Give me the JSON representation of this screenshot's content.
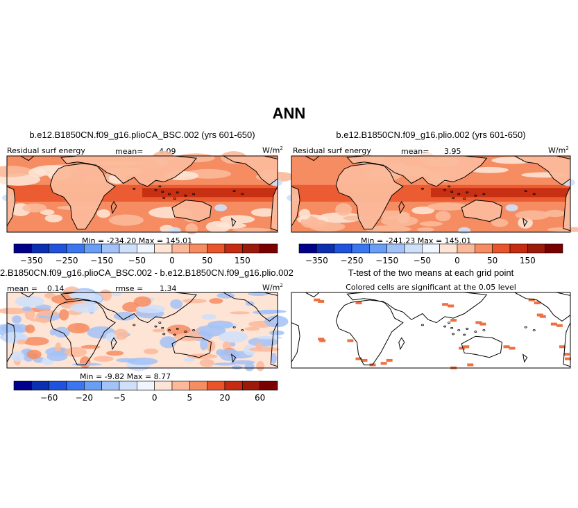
{
  "figure": {
    "title": "ANN",
    "colors": {
      "land_outline": "#000000",
      "significance_cell": "#ee7040",
      "background": "#ffffff"
    }
  },
  "chart_data": [
    {
      "type": "heatmap",
      "panel": "top-left",
      "title": "b.e12.B1850CN.f09_g16.plioCA_BSC.002 (yrs 601-650)",
      "variable": "Residual surf energy",
      "units_base": "W/m",
      "units_exp": "2",
      "mean_label": "mean=",
      "mean_value": "4.09",
      "min_label": "Min =",
      "min_value": "-234.20",
      "max_label": "Max =",
      "max_value": "145.01",
      "colorbar": {
        "levels": [
          -350,
          -300,
          -250,
          -200,
          -150,
          -100,
          -50,
          -25,
          0,
          25,
          50,
          100,
          150,
          200
        ],
        "tick_labels": [
          "-350",
          "-250",
          "-150",
          "-50",
          "0",
          "50",
          "150"
        ],
        "colors": [
          "#00008b",
          "#0a2fb0",
          "#1f52dd",
          "#3a76f0",
          "#6a9df4",
          "#a3c2f7",
          "#cfe0fb",
          "#f1f5ff",
          "#fde4d4",
          "#fbb99a",
          "#f68c62",
          "#e9542a",
          "#c42b10",
          "#9c1a0a",
          "#7a0000"
        ]
      }
    },
    {
      "type": "heatmap",
      "panel": "top-right",
      "title": "b.e12.B1850CN.f09_g16.plio.002 (yrs 601-650)",
      "variable": "Residual surf energy",
      "units_base": "W/m",
      "units_exp": "2",
      "mean_label": "mean=",
      "mean_value": "3.95",
      "min_label": "Min =",
      "min_value": "-241.23",
      "max_label": "Max =",
      "max_value": "145.01",
      "colorbar": {
        "levels": [
          -350,
          -300,
          -250,
          -200,
          -150,
          -100,
          -50,
          -25,
          0,
          25,
          50,
          100,
          150,
          200
        ],
        "tick_labels": [
          "-350",
          "-250",
          "-150",
          "-50",
          "0",
          "50",
          "150"
        ],
        "colors": [
          "#00008b",
          "#0a2fb0",
          "#1f52dd",
          "#3a76f0",
          "#6a9df4",
          "#a3c2f7",
          "#cfe0fb",
          "#f1f5ff",
          "#fde4d4",
          "#fbb99a",
          "#f68c62",
          "#e9542a",
          "#c42b10",
          "#9c1a0a",
          "#7a0000"
        ]
      }
    },
    {
      "type": "heatmap",
      "panel": "bottom-left",
      "title": "2.B1850CN.f09_g16.plioCA_BSC.002 - b.e12.B1850CN.f09_g16.plio.002",
      "mean_label": "mean =",
      "mean_value": "0.14",
      "rmse_label": "rmse =",
      "rmse_value": "1.34",
      "units_base": "W/m",
      "units_exp": "2",
      "min_label": "Min =",
      "min_value": "-9.82",
      "max_label": "Max =",
      "max_value": "8.77",
      "colorbar": {
        "levels": [
          -100,
          -60,
          -40,
          -20,
          -10,
          -5,
          -2,
          0,
          2,
          5,
          10,
          20,
          40,
          60,
          100
        ],
        "tick_labels": [
          "-60",
          "-20",
          "-5",
          "0",
          "5",
          "20",
          "60"
        ],
        "colors": [
          "#00008b",
          "#0a2fb0",
          "#1f52dd",
          "#3a76f0",
          "#6a9df4",
          "#a3c2f7",
          "#cfe0fb",
          "#f1f5ff",
          "#fde4d4",
          "#fbb99a",
          "#f68c62",
          "#e9542a",
          "#c42b10",
          "#9c1a0a",
          "#7a0000"
        ]
      }
    },
    {
      "type": "heatmap",
      "panel": "bottom-right",
      "title": "T-test of the two means at each grid point",
      "subtitle": "Colored cells are significant at the 0.05 level"
    }
  ]
}
